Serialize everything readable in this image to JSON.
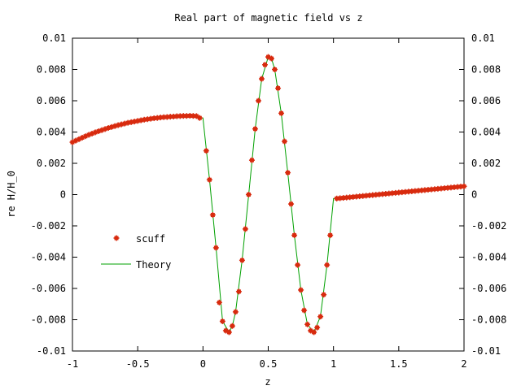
{
  "chart_data": {
    "type": "scatter",
    "title": "Real part of magnetic field vs z",
    "xlabel": "z",
    "ylabel": "re H/H_0",
    "xlim": [
      -1,
      2
    ],
    "ylim": [
      -0.01,
      0.01
    ],
    "x_ticks": [
      "-1",
      "-0.5",
      "0",
      "0.5",
      "1",
      "1.5",
      "2"
    ],
    "x_tick_values": [
      -1,
      -0.5,
      0,
      0.5,
      1,
      1.5,
      2
    ],
    "y_ticks": [
      "-0.01",
      "-0.008",
      "-0.006",
      "-0.004",
      "-0.002",
      "0",
      "0.002",
      "0.004",
      "0.006",
      "0.008",
      "0.01"
    ],
    "y_tick_values": [
      -0.01,
      -0.008,
      -0.006,
      -0.004,
      -0.002,
      0,
      0.002,
      0.004,
      0.006,
      0.008,
      0.01
    ],
    "y_ticks_mirrored_right": true,
    "grid": false,
    "legend_position": "left-middle",
    "series": [
      {
        "name": "scuff",
        "style": "points",
        "marker": "star",
        "color": "#d82b0f",
        "x": [
          -1.0,
          -0.975,
          -0.95,
          -0.925,
          -0.9,
          -0.875,
          -0.85,
          -0.825,
          -0.8,
          -0.775,
          -0.75,
          -0.725,
          -0.7,
          -0.675,
          -0.65,
          -0.625,
          -0.6,
          -0.575,
          -0.55,
          -0.525,
          -0.5,
          -0.475,
          -0.45,
          -0.425,
          -0.4,
          -0.375,
          -0.35,
          -0.325,
          -0.3,
          -0.275,
          -0.25,
          -0.225,
          -0.2,
          -0.175,
          -0.15,
          -0.125,
          -0.1,
          -0.075,
          -0.05,
          -0.025,
          0.025,
          0.05,
          0.075,
          0.1,
          0.125,
          0.15,
          0.175,
          0.2,
          0.225,
          0.25,
          0.275,
          0.3,
          0.325,
          0.35,
          0.375,
          0.4,
          0.425,
          0.45,
          0.475,
          0.5,
          0.525,
          0.55,
          0.575,
          0.6,
          0.625,
          0.65,
          0.675,
          0.7,
          0.725,
          0.75,
          0.775,
          0.8,
          0.825,
          0.85,
          0.875,
          0.9,
          0.925,
          0.95,
          0.975,
          1.025,
          1.05,
          1.075,
          1.1,
          1.125,
          1.15,
          1.175,
          1.2,
          1.225,
          1.25,
          1.275,
          1.3,
          1.325,
          1.35,
          1.375,
          1.4,
          1.425,
          1.45,
          1.475,
          1.5,
          1.525,
          1.55,
          1.575,
          1.6,
          1.625,
          1.65,
          1.675,
          1.7,
          1.725,
          1.75,
          1.775,
          1.8,
          1.825,
          1.85,
          1.875,
          1.9,
          1.925,
          1.95,
          1.975,
          2.0
        ],
        "y": [
          0.00335,
          0.00345,
          0.00354,
          0.00364,
          0.00373,
          0.00382,
          0.0039,
          0.00398,
          0.00405,
          0.00412,
          0.00419,
          0.00426,
          0.00432,
          0.00438,
          0.00444,
          0.00449,
          0.00454,
          0.00459,
          0.00463,
          0.00467,
          0.00471,
          0.00475,
          0.00479,
          0.00482,
          0.00485,
          0.00488,
          0.0049,
          0.00493,
          0.00495,
          0.00496,
          0.00498,
          0.00499,
          0.00501,
          0.00502,
          0.00503,
          0.00503,
          0.00504,
          0.00503,
          0.00502,
          0.0049,
          0.0028,
          0.00095,
          -0.0013,
          -0.0034,
          -0.0069,
          -0.0081,
          -0.0087,
          -0.0088,
          -0.0084,
          -0.0075,
          -0.0062,
          -0.0042,
          -0.0022,
          0.0,
          0.0022,
          0.0042,
          0.006,
          0.0074,
          0.0083,
          0.0088,
          0.0087,
          0.008,
          0.0068,
          0.0052,
          0.0034,
          0.0014,
          -0.0006,
          -0.0026,
          -0.0045,
          -0.0061,
          -0.0074,
          -0.0083,
          -0.0087,
          -0.0088,
          -0.0085,
          -0.0078,
          -0.0064,
          -0.0045,
          -0.0026,
          -0.00025,
          -0.00023,
          -0.00021,
          -0.00019,
          -0.00017,
          -0.00015,
          -0.00013,
          -0.00011,
          -9e-05,
          -7e-05,
          -5e-05,
          -3e-05,
          -1e-05,
          1e-05,
          3e-05,
          5e-05,
          7e-05,
          9e-05,
          0.00011,
          0.00013,
          0.00015,
          0.00017,
          0.00019,
          0.00021,
          0.00023,
          0.00025,
          0.00027,
          0.00029,
          0.00031,
          0.00033,
          0.00035,
          0.00037,
          0.00039,
          0.00041,
          0.00043,
          0.00045,
          0.00047,
          0.00049,
          0.00051,
          0.00053
        ]
      },
      {
        "name": "Theory",
        "style": "line",
        "color": "#00a000",
        "x": [
          -1.0,
          -0.9,
          -0.8,
          -0.7,
          -0.6,
          -0.5,
          -0.4,
          -0.3,
          -0.2,
          -0.1,
          0.0,
          0.05,
          0.1,
          0.15,
          0.2,
          0.225,
          0.25,
          0.3,
          0.35,
          0.4,
          0.45,
          0.5,
          0.525,
          0.55,
          0.6,
          0.65,
          0.7,
          0.75,
          0.8,
          0.85,
          0.9,
          0.95,
          1.0,
          1.1,
          1.2,
          1.3,
          1.4,
          1.5,
          1.6,
          1.7,
          1.8,
          1.9,
          2.0
        ],
        "y": [
          0.00335,
          0.00373,
          0.00405,
          0.00432,
          0.00454,
          0.00471,
          0.00485,
          0.00495,
          0.00501,
          0.00504,
          0.0049,
          0.00095,
          -0.0034,
          -0.0081,
          -0.0088,
          -0.0084,
          -0.0075,
          -0.0042,
          0.0,
          0.0042,
          0.0074,
          0.0088,
          0.0087,
          0.008,
          0.0052,
          0.0014,
          -0.0026,
          -0.0061,
          -0.0083,
          -0.0088,
          -0.0078,
          -0.0045,
          -0.00025,
          -0.00019,
          -0.00011,
          -3e-05,
          5e-05,
          0.00013,
          0.00021,
          0.00029,
          0.00037,
          0.00045,
          0.00053
        ]
      }
    ]
  }
}
